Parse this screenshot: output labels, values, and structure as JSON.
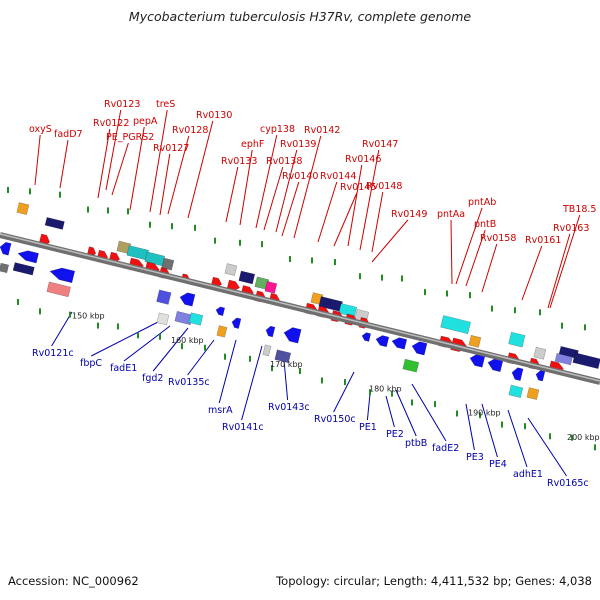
{
  "title": "Mycobacterium tuberculosis H37Rv, complete genome",
  "accession": "Accession: NC_000962",
  "summary": "Topology: circular; Length: 4,411,532 bp; Genes: 4,038",
  "colors": {
    "backbone": "#8c8c8c",
    "forward_label": "#cc0000",
    "reverse_label": "#0000aa",
    "tick": "#228b22",
    "forward_gene": "#ee1111",
    "reverse_gene": "#1111ee"
  },
  "scale_labels": [
    {
      "text": "150 kbp",
      "kbp": 150
    },
    {
      "text": "160 kbp",
      "kbp": 160
    },
    {
      "text": "170 kbp",
      "kbp": 170
    },
    {
      "text": "180 kbp",
      "kbp": 180
    },
    {
      "text": "190 kbp",
      "kbp": 190
    },
    {
      "text": "200 kbp",
      "kbp": 200
    }
  ],
  "forward_labels": [
    "oxyS",
    "fadD7",
    "Rv0122",
    "Rv0123",
    "PE_PGRS2",
    "pepA",
    "treS",
    "Rv0127",
    "Rv0128",
    "Rv0130",
    "Rv0133",
    "ephF",
    "cyp138",
    "Rv0138",
    "Rv0139",
    "Rv0140",
    "Rv0142",
    "Rv0144",
    "Rv0145",
    "Rv0146",
    "Rv0147",
    "Rv0148",
    "Rv0149",
    "pntAa",
    "pntAb",
    "pntB",
    "Rv0158",
    "Rv0161",
    "Rv0163",
    "TB18.5"
  ],
  "reverse_labels": [
    "Rv0121c",
    "fbpC",
    "fadE1",
    "fgd2",
    "Rv0135c",
    "msrA",
    "Rv0141c",
    "Rv0143c",
    "Rv0150c",
    "PE1",
    "PE2",
    "ptbB",
    "fadE2",
    "PE3",
    "PE4",
    "adhE1",
    "Rv0165c"
  ]
}
